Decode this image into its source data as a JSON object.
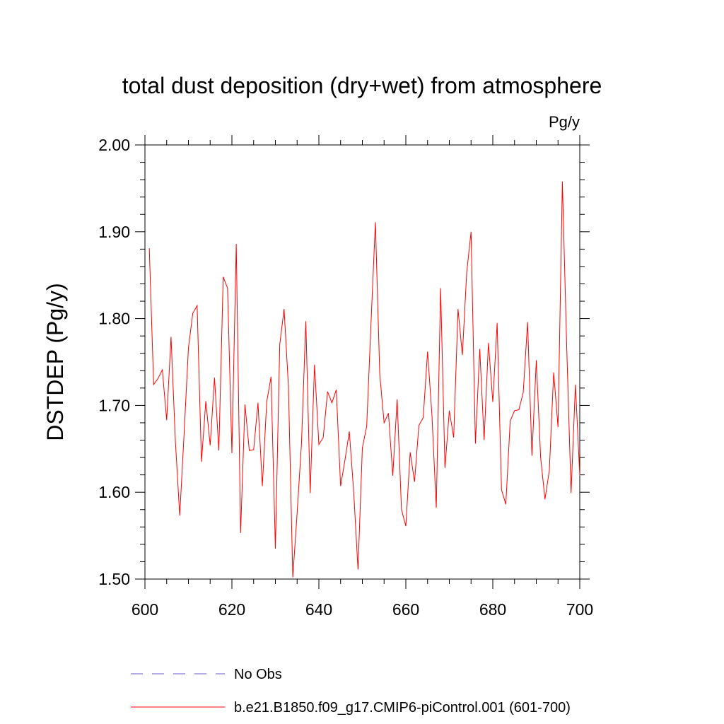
{
  "chart_data": {
    "type": "line",
    "title": "total dust deposition (dry+wet) from atmosphere",
    "units": "Pg/y",
    "ylabel": "DSTDEP  (Pg/y)",
    "xlabel": "",
    "xlim": [
      600,
      700
    ],
    "ylim": [
      1.5,
      2.0
    ],
    "x_ticks": [
      600,
      620,
      640,
      660,
      680,
      700
    ],
    "x_tick_labels": [
      "600",
      "620",
      "640",
      "660",
      "680",
      "700"
    ],
    "y_ticks": [
      1.5,
      1.6,
      1.7,
      1.8,
      1.9,
      2.0
    ],
    "y_tick_labels": [
      "1.50",
      "1.60",
      "1.70",
      "1.80",
      "1.90",
      "2.00"
    ],
    "series": [
      {
        "name": "b.e21.B1850.f09_g17.CMIP6-piControl.001 (601-700)",
        "color": "#ff0000",
        "x": [
          601,
          602,
          603,
          604,
          605,
          606,
          607,
          608,
          609,
          610,
          611,
          612,
          613,
          614,
          615,
          616,
          617,
          618,
          619,
          620,
          621,
          622,
          623,
          624,
          625,
          626,
          627,
          628,
          629,
          630,
          631,
          632,
          633,
          634,
          635,
          636,
          637,
          638,
          639,
          640,
          641,
          642,
          643,
          644,
          645,
          646,
          647,
          648,
          649,
          650,
          651,
          652,
          653,
          654,
          655,
          656,
          657,
          658,
          659,
          660,
          661,
          662,
          663,
          664,
          665,
          666,
          667,
          668,
          669,
          670,
          671,
          672,
          673,
          674,
          675,
          676,
          677,
          678,
          679,
          680,
          681,
          682,
          683,
          684,
          685,
          686,
          687,
          688,
          689,
          690,
          691,
          692,
          693,
          694,
          695,
          696,
          697,
          698,
          699,
          700
        ],
        "values": [
          1.881,
          1.724,
          1.731,
          1.741,
          1.683,
          1.779,
          1.659,
          1.573,
          1.667,
          1.766,
          1.806,
          1.815,
          1.635,
          1.705,
          1.654,
          1.732,
          1.648,
          1.848,
          1.835,
          1.645,
          1.886,
          1.553,
          1.701,
          1.648,
          1.649,
          1.703,
          1.607,
          1.704,
          1.733,
          1.535,
          1.77,
          1.811,
          1.722,
          1.502,
          1.576,
          1.656,
          1.797,
          1.599,
          1.747,
          1.655,
          1.663,
          1.716,
          1.703,
          1.718,
          1.607,
          1.637,
          1.67,
          1.601,
          1.511,
          1.651,
          1.676,
          1.796,
          1.911,
          1.736,
          1.68,
          1.691,
          1.619,
          1.707,
          1.58,
          1.561,
          1.646,
          1.612,
          1.677,
          1.686,
          1.762,
          1.689,
          1.582,
          1.835,
          1.628,
          1.694,
          1.663,
          1.811,
          1.758,
          1.853,
          1.9,
          1.656,
          1.765,
          1.66,
          1.772,
          1.704,
          1.795,
          1.603,
          1.586,
          1.682,
          1.694,
          1.695,
          1.715,
          1.796,
          1.642,
          1.752,
          1.64,
          1.592,
          1.625,
          1.738,
          1.675,
          1.958,
          1.767,
          1.599,
          1.724,
          1.619
        ],
        "line_style": "solid"
      }
    ],
    "legend": [
      {
        "label": "No Obs",
        "color": "#6a5acd",
        "style": "dashed"
      },
      {
        "label": "b.e21.B1850.f09_g17.CMIP6-piControl.001 (601-700)",
        "color": "#ff0000",
        "style": "solid"
      }
    ],
    "legend_position": "bottom",
    "grid": false
  }
}
